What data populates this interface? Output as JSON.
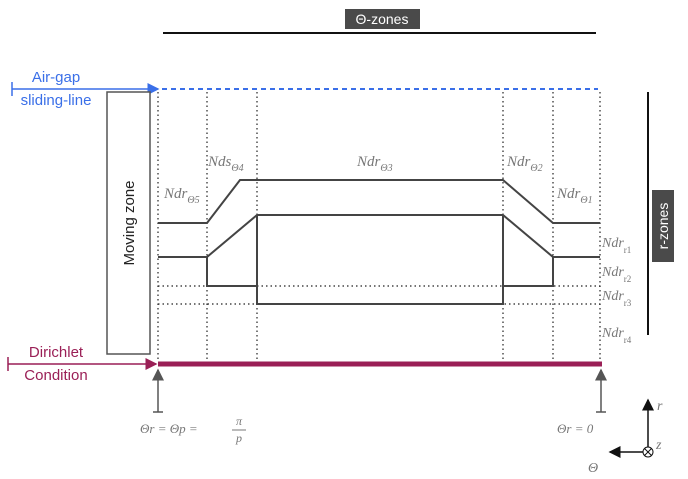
{
  "header": {
    "theta_zones_label": "Θ-zones"
  },
  "side": {
    "r_zones_label": "r-zones"
  },
  "airgap": {
    "line1": "Air-gap",
    "line2": "sliding-line"
  },
  "moving_zone": {
    "label": "Moving zone"
  },
  "dirichlet": {
    "line1": "Dirichlet",
    "line2": "Condition"
  },
  "regions": {
    "ndr_theta5": {
      "base": "Ndr",
      "sub": "Θ5"
    },
    "nds_theta4": {
      "base": "Nds",
      "sub": "Θ4"
    },
    "ndr_theta3": {
      "base": "Ndr",
      "sub": "Θ3"
    },
    "ndr_theta2": {
      "base": "Ndr",
      "sub": "Θ2"
    },
    "ndr_theta1": {
      "base": "Ndr",
      "sub": "Θ1"
    }
  },
  "r_regions": [
    {
      "base": "Ndr",
      "sub": "r1"
    },
    {
      "base": "Ndr",
      "sub": "r2"
    },
    {
      "base": "Ndr",
      "sub": "r3"
    },
    {
      "base": "Ndr",
      "sub": "r4"
    }
  ],
  "boundaries": {
    "left": {
      "a": "Θr = Θp = ",
      "num": "π",
      "den": "p"
    },
    "right": {
      "text": "Θr = 0"
    }
  },
  "axes": {
    "r": "r",
    "z": "z",
    "theta": "Θ"
  },
  "colors": {
    "airgap": "#3a6fe8",
    "dirichlet": "#9a1f56",
    "outline": "#444444",
    "dotted": "#222222",
    "label_bg": "#4a4a4a"
  }
}
